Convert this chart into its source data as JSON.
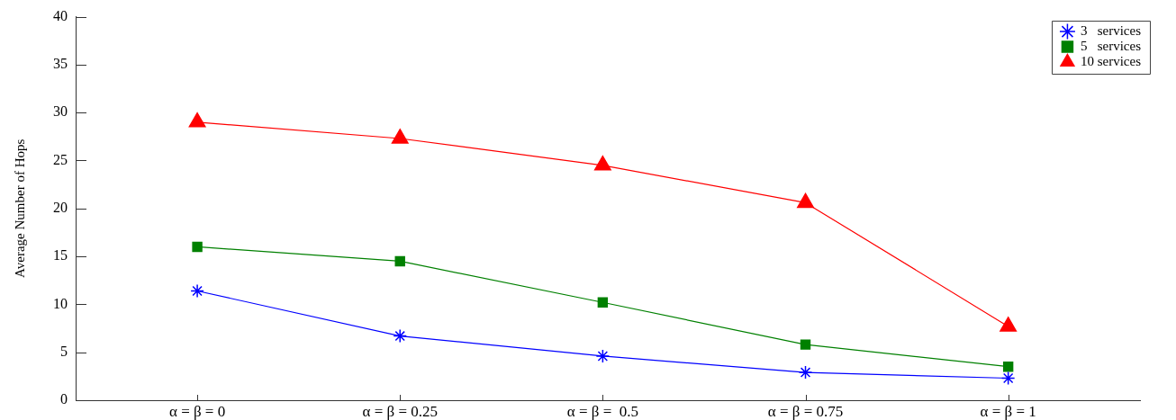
{
  "chart_data": {
    "type": "line",
    "ylabel": "Average Number of Hops",
    "categories": [
      "α = β = 0",
      "α = β = 0.25",
      "α = β =  0.5",
      "α = β = 0.75",
      "α = β = 1"
    ],
    "series": [
      {
        "name": "3   services",
        "color": "#0000ff",
        "marker": "cross",
        "values": [
          11.4,
          6.7,
          4.6,
          2.9,
          2.3
        ]
      },
      {
        "name": "5   services",
        "color": "#008000",
        "marker": "square",
        "values": [
          16.0,
          14.5,
          10.2,
          5.8,
          3.5
        ]
      },
      {
        "name": "10 services",
        "color": "#ff0000",
        "marker": "triangle",
        "values": [
          29.0,
          27.3,
          24.5,
          20.6,
          7.7
        ]
      }
    ],
    "ylim": [
      0,
      40
    ],
    "yticks": [
      0,
      5,
      10,
      15,
      20,
      25,
      30,
      35,
      40
    ],
    "legend": "top right",
    "line_style": "solid"
  }
}
